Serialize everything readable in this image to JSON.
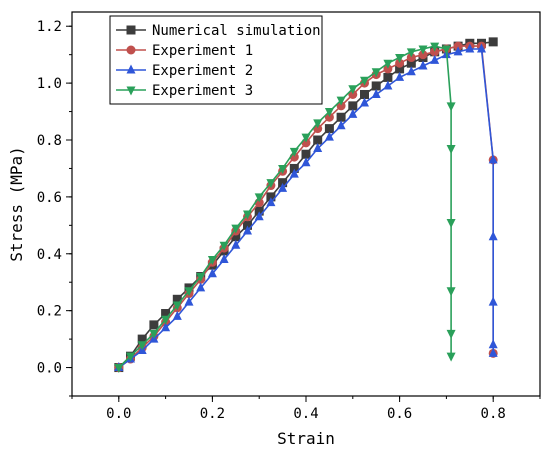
{
  "chart_data": {
    "type": "line",
    "xlabel": "Strain",
    "ylabel": "Stress (MPa)",
    "xlim": [
      -0.1,
      0.9
    ],
    "ylim": [
      -0.1,
      1.25
    ],
    "xticks": [
      "0.0",
      "0.2",
      "0.4",
      "0.6",
      "0.8"
    ],
    "yticks": [
      "0.0",
      "0.2",
      "0.4",
      "0.6",
      "0.8",
      "1.0",
      "1.2"
    ],
    "legend": "top-left",
    "grid": false,
    "series": [
      {
        "name": "Numerical simulation",
        "color": "#3c3c3c",
        "marker": "square",
        "points": [
          [
            0.0,
            0.0
          ],
          [
            0.025,
            0.04
          ],
          [
            0.05,
            0.1
          ],
          [
            0.075,
            0.15
          ],
          [
            0.1,
            0.19
          ],
          [
            0.125,
            0.24
          ],
          [
            0.15,
            0.28
          ],
          [
            0.175,
            0.32
          ],
          [
            0.2,
            0.36
          ],
          [
            0.225,
            0.41
          ],
          [
            0.25,
            0.46
          ],
          [
            0.275,
            0.5
          ],
          [
            0.3,
            0.55
          ],
          [
            0.325,
            0.6
          ],
          [
            0.35,
            0.65
          ],
          [
            0.375,
            0.7
          ],
          [
            0.4,
            0.75
          ],
          [
            0.425,
            0.8
          ],
          [
            0.45,
            0.84
          ],
          [
            0.475,
            0.88
          ],
          [
            0.5,
            0.92
          ],
          [
            0.525,
            0.96
          ],
          [
            0.55,
            0.99
          ],
          [
            0.575,
            1.02
          ],
          [
            0.6,
            1.05
          ],
          [
            0.625,
            1.07
          ],
          [
            0.65,
            1.09
          ],
          [
            0.675,
            1.11
          ],
          [
            0.7,
            1.12
          ],
          [
            0.725,
            1.13
          ],
          [
            0.75,
            1.14
          ],
          [
            0.775,
            1.14
          ],
          [
            0.8,
            1.145
          ]
        ]
      },
      {
        "name": "Experiment 1",
        "color": "#c0504d",
        "marker": "circle",
        "points": [
          [
            0.0,
            0.0
          ],
          [
            0.025,
            0.03
          ],
          [
            0.05,
            0.07
          ],
          [
            0.075,
            0.11
          ],
          [
            0.1,
            0.16
          ],
          [
            0.125,
            0.21
          ],
          [
            0.15,
            0.26
          ],
          [
            0.175,
            0.31
          ],
          [
            0.2,
            0.37
          ],
          [
            0.225,
            0.42
          ],
          [
            0.25,
            0.48
          ],
          [
            0.275,
            0.53
          ],
          [
            0.3,
            0.58
          ],
          [
            0.325,
            0.64
          ],
          [
            0.35,
            0.69
          ],
          [
            0.375,
            0.74
          ],
          [
            0.4,
            0.79
          ],
          [
            0.425,
            0.84
          ],
          [
            0.45,
            0.88
          ],
          [
            0.475,
            0.92
          ],
          [
            0.5,
            0.96
          ],
          [
            0.525,
            1.0
          ],
          [
            0.55,
            1.03
          ],
          [
            0.575,
            1.05
          ],
          [
            0.6,
            1.07
          ],
          [
            0.625,
            1.09
          ],
          [
            0.65,
            1.1
          ],
          [
            0.675,
            1.11
          ],
          [
            0.7,
            1.12
          ],
          [
            0.725,
            1.13
          ],
          [
            0.75,
            1.13
          ],
          [
            0.775,
            1.13
          ],
          [
            0.8,
            0.73
          ],
          [
            0.8,
            0.05
          ]
        ]
      },
      {
        "name": "Experiment 2",
        "color": "#2f56d8",
        "marker": "triangle-up",
        "points": [
          [
            0.0,
            0.0
          ],
          [
            0.025,
            0.03
          ],
          [
            0.05,
            0.06
          ],
          [
            0.075,
            0.1
          ],
          [
            0.1,
            0.14
          ],
          [
            0.125,
            0.18
          ],
          [
            0.15,
            0.23
          ],
          [
            0.175,
            0.28
          ],
          [
            0.2,
            0.33
          ],
          [
            0.225,
            0.38
          ],
          [
            0.25,
            0.43
          ],
          [
            0.275,
            0.48
          ],
          [
            0.3,
            0.53
          ],
          [
            0.325,
            0.58
          ],
          [
            0.35,
            0.63
          ],
          [
            0.375,
            0.68
          ],
          [
            0.4,
            0.72
          ],
          [
            0.425,
            0.77
          ],
          [
            0.45,
            0.81
          ],
          [
            0.475,
            0.85
          ],
          [
            0.5,
            0.89
          ],
          [
            0.525,
            0.93
          ],
          [
            0.55,
            0.96
          ],
          [
            0.575,
            0.99
          ],
          [
            0.6,
            1.02
          ],
          [
            0.625,
            1.04
          ],
          [
            0.65,
            1.06
          ],
          [
            0.675,
            1.08
          ],
          [
            0.7,
            1.1
          ],
          [
            0.725,
            1.11
          ],
          [
            0.75,
            1.12
          ],
          [
            0.775,
            1.12
          ],
          [
            0.8,
            0.73
          ],
          [
            0.8,
            0.46
          ],
          [
            0.8,
            0.23
          ],
          [
            0.8,
            0.08
          ],
          [
            0.8,
            0.05
          ]
        ]
      },
      {
        "name": "Experiment 3",
        "color": "#2aa05a",
        "marker": "triangle-down",
        "points": [
          [
            0.0,
            0.0
          ],
          [
            0.025,
            0.04
          ],
          [
            0.05,
            0.08
          ],
          [
            0.075,
            0.12
          ],
          [
            0.1,
            0.17
          ],
          [
            0.125,
            0.22
          ],
          [
            0.15,
            0.27
          ],
          [
            0.175,
            0.32
          ],
          [
            0.2,
            0.38
          ],
          [
            0.225,
            0.43
          ],
          [
            0.25,
            0.49
          ],
          [
            0.275,
            0.54
          ],
          [
            0.3,
            0.6
          ],
          [
            0.325,
            0.65
          ],
          [
            0.35,
            0.7
          ],
          [
            0.375,
            0.76
          ],
          [
            0.4,
            0.81
          ],
          [
            0.425,
            0.86
          ],
          [
            0.45,
            0.9
          ],
          [
            0.475,
            0.94
          ],
          [
            0.5,
            0.98
          ],
          [
            0.525,
            1.01
          ],
          [
            0.55,
            1.04
          ],
          [
            0.575,
            1.07
          ],
          [
            0.6,
            1.09
          ],
          [
            0.625,
            1.11
          ],
          [
            0.65,
            1.12
          ],
          [
            0.675,
            1.13
          ],
          [
            0.7,
            1.12
          ],
          [
            0.71,
            0.92
          ],
          [
            0.71,
            0.77
          ],
          [
            0.71,
            0.51
          ],
          [
            0.71,
            0.27
          ],
          [
            0.71,
            0.12
          ],
          [
            0.71,
            0.04
          ]
        ]
      }
    ]
  }
}
